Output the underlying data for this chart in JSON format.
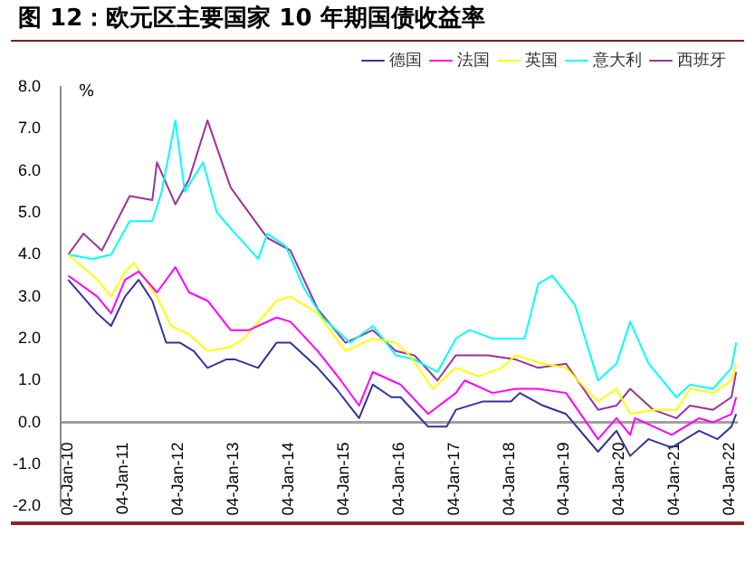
{
  "chart_data": {
    "type": "line",
    "title": "图 12：欧元区主要国家 10 年期国债收益率",
    "ylabel": "%",
    "x": [
      "2010-01-04",
      "2010-07-15",
      "2010-10-15",
      "2011-01-15",
      "2011-04-15",
      "2011-07-15",
      "2011-10-15",
      "2012-01-15",
      "2012-04-15",
      "2012-07-15",
      "2012-11-15",
      "2013-01-15",
      "2013-06-15",
      "2013-10-15",
      "2014-01-15",
      "2014-07-15",
      "2014-11-15",
      "2015-04-15",
      "2015-07-15",
      "2015-11-15",
      "2016-01-15",
      "2016-07-15",
      "2016-11-15",
      "2017-01-15",
      "2017-07-15",
      "2018-01-15",
      "2018-03-15",
      "2018-08-15",
      "2019-01-15",
      "2019-08-15",
      "2019-12-15",
      "2020-03-15",
      "2020-07-15",
      "2020-12-15",
      "2021-06-15",
      "2021-10-15",
      "2022-01-15",
      "2022-02-15"
    ],
    "series": [
      {
        "name": "德国",
        "color": "#333399",
        "values": [
          3.4,
          2.6,
          2.3,
          3.0,
          3.4,
          2.9,
          1.9,
          1.9,
          1.7,
          1.3,
          1.5,
          1.5,
          1.3,
          1.9,
          1.9,
          1.3,
          0.8,
          0.1,
          0.9,
          0.6,
          0.6,
          -0.1,
          -0.1,
          0.3,
          0.5,
          0.5,
          0.7,
          0.4,
          0.2,
          -0.7,
          -0.2,
          -0.8,
          -0.4,
          -0.6,
          -0.2,
          -0.4,
          -0.1,
          0.2
        ]
      },
      {
        "name": "法国",
        "color": "#ff00ff",
        "x": [
          "2010-01-04",
          "2010-07-15",
          "2010-10-15",
          "2011-01-15",
          "2011-04-15",
          "2011-08-15",
          "2011-12-15",
          "2012-03-15",
          "2012-07-15",
          "2012-12-15",
          "2013-04-15",
          "2013-10-15",
          "2014-01-15",
          "2014-07-15",
          "2014-12-15",
          "2015-04-15",
          "2015-07-15",
          "2015-11-15",
          "2016-01-15",
          "2016-07-15",
          "2017-01-15",
          "2017-03-15",
          "2017-09-15",
          "2018-02-15",
          "2018-07-15",
          "2019-01-15",
          "2019-08-15",
          "2019-12-15",
          "2020-03-15",
          "2020-04-15",
          "2020-12-15",
          "2021-06-15",
          "2021-09-15",
          "2022-01-15",
          "2022-02-15"
        ],
        "values": [
          3.5,
          3.0,
          2.6,
          3.4,
          3.6,
          3.1,
          3.7,
          3.1,
          2.9,
          2.2,
          2.2,
          2.5,
          2.4,
          1.7,
          1.0,
          0.4,
          1.2,
          1.0,
          0.9,
          0.2,
          0.7,
          1.0,
          0.7,
          0.8,
          0.8,
          0.7,
          -0.4,
          0.1,
          -0.3,
          0.1,
          -0.3,
          0.1,
          0.0,
          0.2,
          0.6
        ]
      },
      {
        "name": "英国",
        "color": "#ffff00",
        "x": [
          "2010-01-04",
          "2010-07-15",
          "2010-10-15",
          "2011-01-15",
          "2011-03-15",
          "2011-08-15",
          "2011-11-15",
          "2012-03-15",
          "2012-07-15",
          "2012-12-15",
          "2013-03-15",
          "2013-10-15",
          "2014-01-15",
          "2014-07-15",
          "2015-01-15",
          "2015-07-15",
          "2015-12-15",
          "2016-03-15",
          "2016-08-15",
          "2017-01-15",
          "2017-06-15",
          "2017-11-15",
          "2018-02-15",
          "2018-08-15",
          "2019-01-15",
          "2019-08-15",
          "2019-12-15",
          "2020-03-15",
          "2020-08-15",
          "2021-01-15",
          "2021-04-15",
          "2021-09-15",
          "2022-01-15",
          "2022-02-15"
        ],
        "values": [
          4.0,
          3.4,
          3.0,
          3.6,
          3.8,
          3.0,
          2.3,
          2.1,
          1.7,
          1.8,
          2.0,
          2.9,
          3.0,
          2.6,
          1.7,
          2.0,
          1.9,
          1.6,
          0.8,
          1.3,
          1.1,
          1.3,
          1.6,
          1.4,
          1.3,
          0.5,
          0.8,
          0.2,
          0.3,
          0.3,
          0.8,
          0.7,
          1.0,
          1.4
        ]
      },
      {
        "name": "意大利",
        "color": "#00ffff",
        "x": [
          "2010-01-04",
          "2010-06-15",
          "2010-10-15",
          "2011-02-15",
          "2011-07-15",
          "2011-09-15",
          "2011-12-15",
          "2012-02-15",
          "2012-06-15",
          "2012-09-15",
          "2013-01-15",
          "2013-06-15",
          "2013-08-15",
          "2013-12-15",
          "2014-04-15",
          "2014-08-15",
          "2015-02-15",
          "2015-07-15",
          "2015-12-15",
          "2016-04-15",
          "2016-09-15",
          "2017-01-15",
          "2017-04-15",
          "2017-09-15",
          "2018-04-15",
          "2018-07-15",
          "2018-10-15",
          "2019-03-15",
          "2019-08-15",
          "2019-12-15",
          "2020-03-15",
          "2020-07-15",
          "2021-01-15",
          "2021-04-15",
          "2021-09-15",
          "2022-01-15",
          "2022-02-15"
        ],
        "values": [
          4.0,
          3.9,
          4.0,
          4.8,
          4.8,
          5.5,
          7.2,
          5.5,
          6.2,
          5.0,
          4.5,
          3.9,
          4.5,
          4.2,
          3.2,
          2.5,
          1.9,
          2.3,
          1.6,
          1.5,
          1.2,
          2.0,
          2.2,
          2.0,
          2.0,
          3.3,
          3.5,
          2.8,
          1.0,
          1.4,
          2.4,
          1.4,
          0.6,
          0.9,
          0.8,
          1.3,
          1.9
        ]
      },
      {
        "name": "西班牙",
        "color": "#993399",
        "x": [
          "2010-01-04",
          "2010-04-15",
          "2010-08-15",
          "2011-02-15",
          "2011-07-15",
          "2011-08-15",
          "2011-12-15",
          "2012-03-15",
          "2012-07-15",
          "2012-12-15",
          "2013-04-15",
          "2013-08-15",
          "2014-01-15",
          "2014-07-15",
          "2015-01-15",
          "2015-07-15",
          "2015-12-15",
          "2016-04-15",
          "2016-09-15",
          "2017-01-15",
          "2017-08-15",
          "2018-02-15",
          "2018-07-15",
          "2019-01-15",
          "2019-08-15",
          "2019-12-15",
          "2020-03-15",
          "2020-08-15",
          "2021-01-15",
          "2021-04-15",
          "2021-09-15",
          "2022-01-15",
          "2022-02-15"
        ],
        "values": [
          4.0,
          4.5,
          4.1,
          5.4,
          5.3,
          6.2,
          5.2,
          5.8,
          7.2,
          5.6,
          5.0,
          4.4,
          4.1,
          2.7,
          1.9,
          2.2,
          1.7,
          1.6,
          1.0,
          1.6,
          1.6,
          1.5,
          1.3,
          1.4,
          0.3,
          0.4,
          0.8,
          0.3,
          0.1,
          0.4,
          0.3,
          0.6,
          1.2
        ]
      }
    ],
    "xlim": [
      "2009-11-15",
      "2022-02-20"
    ],
    "xticks": [
      {
        "value": "2010-01-04",
        "label": "04-Jan-10"
      },
      {
        "value": "2011-01-04",
        "label": "04-Jan-11"
      },
      {
        "value": "2012-01-04",
        "label": "04-Jan-12"
      },
      {
        "value": "2013-01-04",
        "label": "04-Jan-13"
      },
      {
        "value": "2014-01-04",
        "label": "04-Jan-14"
      },
      {
        "value": "2015-01-04",
        "label": "04-Jan-15"
      },
      {
        "value": "2016-01-04",
        "label": "04-Jan-16"
      },
      {
        "value": "2017-01-04",
        "label": "04-Jan-17"
      },
      {
        "value": "2018-01-04",
        "label": "04-Jan-18"
      },
      {
        "value": "2019-01-04",
        "label": "04-Jan-19"
      },
      {
        "value": "2020-01-04",
        "label": "04-Jan-20"
      },
      {
        "value": "2021-01-04",
        "label": "04-Jan-21"
      },
      {
        "value": "2022-01-04",
        "label": "04-Jan-22"
      }
    ],
    "ylim": [
      -2,
      8
    ],
    "yticks": [
      {
        "value": -2,
        "label": "-2.0"
      },
      {
        "value": -1,
        "label": "-1.0"
      },
      {
        "value": 0,
        "label": "0.0"
      },
      {
        "value": 1,
        "label": "1.0"
      },
      {
        "value": 2,
        "label": "2.0"
      },
      {
        "value": 3,
        "label": "3.0"
      },
      {
        "value": 4,
        "label": "4.0"
      },
      {
        "value": 5,
        "label": "5.0"
      },
      {
        "value": 6,
        "label": "6.0"
      },
      {
        "value": 7,
        "label": "7.0"
      },
      {
        "value": 8,
        "label": "8.0"
      }
    ],
    "grid": false,
    "legend": "top right",
    "marker": "none",
    "line_style": "solid"
  }
}
